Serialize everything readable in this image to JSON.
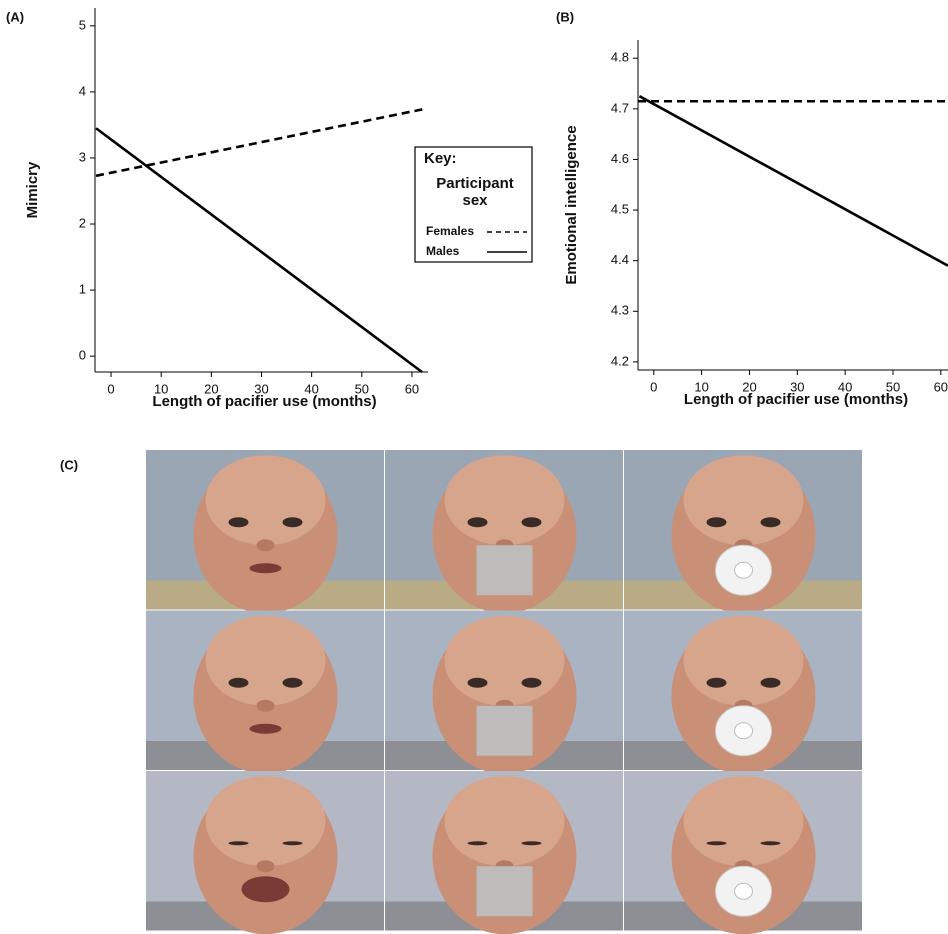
{
  "panel_labels": [
    "(A)",
    "(B)",
    "(C)"
  ],
  "chart_data": [
    {
      "type": "line",
      "x_label": "Length of pacifier use (months)",
      "y_label": "Mimicry",
      "xlim": [
        -3.2,
        63.2
      ],
      "ylim": [
        -0.24,
        5.27
      ],
      "xticks": [
        0,
        10,
        20,
        30,
        40,
        50,
        60
      ],
      "yticks": [
        0,
        1,
        2,
        3,
        4,
        5
      ],
      "legend_title": "Key:",
      "legend_subtitle": "Participant sex",
      "series": [
        {
          "name": "Females",
          "color": "#000000",
          "dash": true,
          "x": [
            -3,
            63
          ],
          "values": [
            2.73,
            3.75
          ]
        },
        {
          "name": "Males",
          "color": "#000000",
          "dash": false,
          "x": [
            -3,
            62
          ],
          "values": [
            3.45,
            -0.24
          ]
        }
      ]
    },
    {
      "type": "line",
      "x_label": "Length of pacifier use (months)",
      "y_label": "Emotional intelligence",
      "xlim": [
        -3.3,
        61.5
      ],
      "ylim": [
        4.184,
        4.836
      ],
      "xticks": [
        0,
        10,
        20,
        30,
        40,
        50,
        60
      ],
      "yticks": [
        4.2,
        4.3,
        4.4,
        4.5,
        4.6,
        4.7,
        4.8
      ],
      "series": [
        {
          "color": "#000000",
          "dash": true,
          "x": [
            -3.3,
            61.5
          ],
          "values": [
            4.715,
            4.715
          ]
        },
        {
          "color": "#000000",
          "dash": false,
          "x": [
            -3,
            61.5
          ],
          "values": [
            4.725,
            4.39
          ]
        }
      ]
    }
  ]
}
